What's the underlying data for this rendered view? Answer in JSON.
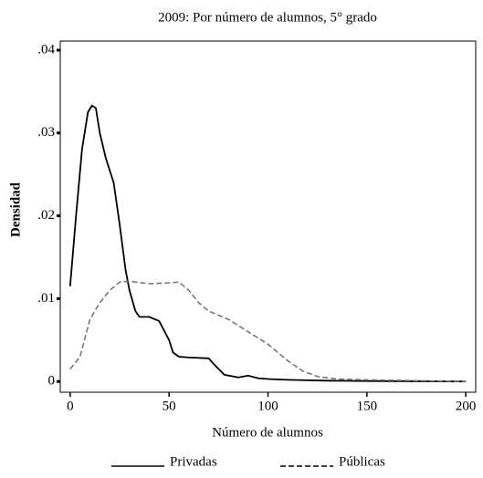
{
  "chart_data": {
    "type": "line",
    "title": "2009: Por número de alumnos, 5° grado",
    "x_label": "Número de alumnos",
    "y_label": "Densidad",
    "xlim": [
      -5,
      205
    ],
    "xticks": [
      0,
      50,
      100,
      150,
      200
    ],
    "ylim": [
      -0.0013,
      0.0411
    ],
    "yticks": [
      {
        "value": 0,
        "label": "0"
      },
      {
        "value": 0.01,
        "label": ".01"
      },
      {
        "value": 0.02,
        "label": ".02"
      },
      {
        "value": 0.03,
        "label": ".03"
      },
      {
        "value": 0.04,
        "label": ".04"
      }
    ],
    "grid": false,
    "legend": "bottom",
    "series": [
      {
        "name": "Privadas",
        "color": "#000000",
        "dash": "solid",
        "x": [
          0,
          3,
          6,
          9,
          11,
          13,
          15,
          18,
          22,
          25,
          28,
          30,
          33,
          35,
          40,
          45,
          50,
          52,
          55,
          60,
          70,
          73,
          78,
          85,
          90,
          95,
          100,
          110,
          130,
          150,
          200
        ],
        "values": [
          0.0115,
          0.02,
          0.028,
          0.0325,
          0.0333,
          0.033,
          0.03,
          0.027,
          0.024,
          0.019,
          0.0135,
          0.011,
          0.0085,
          0.0078,
          0.0078,
          0.0073,
          0.005,
          0.0035,
          0.003,
          0.0029,
          0.0028,
          0.002,
          0.0008,
          0.0005,
          0.0007,
          0.0004,
          0.0003,
          0.0002,
          0.0001,
          5e-05,
          0
        ]
      },
      {
        "name": "Públicas",
        "color": "#777777",
        "dash": "dashed",
        "x": [
          0,
          5,
          10,
          15,
          20,
          25,
          30,
          40,
          50,
          55,
          60,
          65,
          70,
          80,
          90,
          100,
          110,
          118,
          125,
          135,
          150,
          175,
          200
        ],
        "values": [
          0.0015,
          0.003,
          0.0075,
          0.0095,
          0.011,
          0.012,
          0.0121,
          0.0118,
          0.0119,
          0.012,
          0.011,
          0.0095,
          0.0085,
          0.0075,
          0.006,
          0.0045,
          0.0025,
          0.0012,
          0.0006,
          0.0003,
          0.0002,
          0.0001,
          0
        ]
      }
    ]
  }
}
